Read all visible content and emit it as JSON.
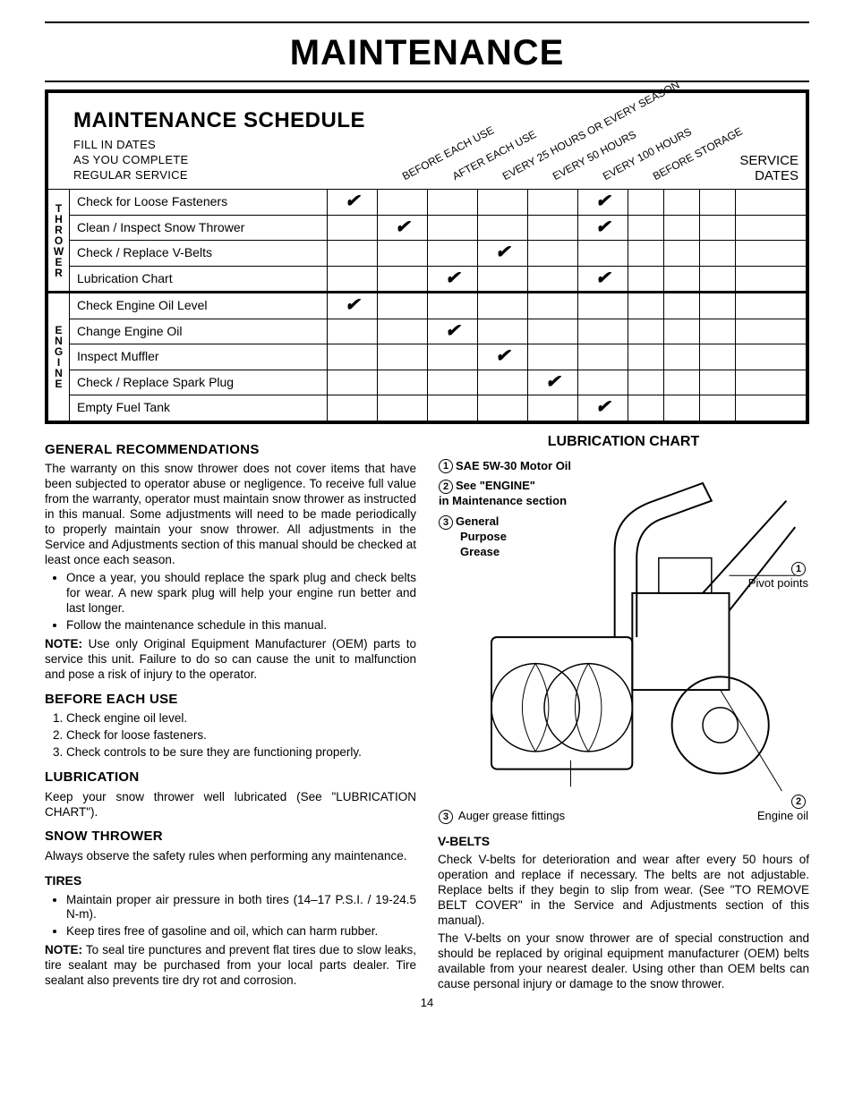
{
  "title": "MAINTENANCE",
  "schedule": {
    "heading": "MAINTENANCE SCHEDULE",
    "sub1": "FILL IN DATES",
    "sub2": "AS YOU COMPLETE",
    "sub3": "REGULAR SERVICE",
    "service_dates": "SERVICE\nDATES",
    "cols": [
      "BEFORE EACH USE",
      "AFTER EACH USE",
      "EVERY 25 HOURS OR EVERY SEASON",
      "EVERY 50 HOURS",
      "EVERY 100 HOURS",
      "BEFORE STORAGE"
    ],
    "checkmark": "✔",
    "group_thrower": "THROWER",
    "group_engine": "ENGINE",
    "rows": [
      {
        "group": "t",
        "task": "Check for Loose Fasteners",
        "checks": [
          true,
          false,
          false,
          false,
          false,
          true
        ]
      },
      {
        "group": "t",
        "task": "Clean / Inspect Snow Thrower",
        "checks": [
          false,
          true,
          false,
          false,
          false,
          true
        ]
      },
      {
        "group": "t",
        "task": "Check / Replace V-Belts",
        "checks": [
          false,
          false,
          false,
          true,
          false,
          false
        ]
      },
      {
        "group": "t",
        "task": "Lubrication Chart",
        "checks": [
          false,
          false,
          true,
          false,
          false,
          true
        ]
      },
      {
        "group": "e",
        "task": "Check Engine Oil Level",
        "checks": [
          true,
          false,
          false,
          false,
          false,
          false
        ]
      },
      {
        "group": "e",
        "task": "Change Engine Oil",
        "checks": [
          false,
          false,
          true,
          false,
          false,
          false
        ]
      },
      {
        "group": "e",
        "task": "Inspect Muffler",
        "checks": [
          false,
          false,
          false,
          true,
          false,
          false
        ]
      },
      {
        "group": "e",
        "task": "Check / Replace Spark Plug",
        "checks": [
          false,
          false,
          false,
          false,
          true,
          false
        ]
      },
      {
        "group": "e",
        "task": "Empty Fuel Tank",
        "checks": [
          false,
          false,
          false,
          false,
          false,
          true
        ]
      }
    ]
  },
  "left": {
    "h_general": "GENERAL RECOMMENDATIONS",
    "p_general": "The warranty on this snow thrower does not cover items that have been subjected to operator abuse or negligence. To receive full value from the warranty, operator must maintain snow thrower as instructed in this manual. Some adjustments will need to be made periodically to properly maintain your snow thrower. All adjustments in the Service and Adjustments section of this manual should be checked at least once each season.",
    "li1": "Once a year, you should replace the spark plug and check belts for wear. A new spark plug will help your engine run better and last longer.",
    "li2": "Follow the maintenance schedule in this manual.",
    "note_label": "NOTE:",
    "note1": " Use only Original Equipment Manufacturer (OEM) parts to service this unit. Failure to do so can cause the unit to malfunction and pose a risk of injury to the operator.",
    "h_before": "BEFORE EACH USE",
    "ol1": "Check engine oil level.",
    "ol2": "Check for loose fasteners.",
    "ol3": "Check controls to be sure they are functioning properly.",
    "h_lub": "LUBRICATION",
    "p_lub": "Keep your snow thrower well lubricated (See \"LUBRICATION CHART\").",
    "h_snow": "SNOW THROWER",
    "p_snow": "Always observe the safety rules when performing any maintenance.",
    "h_tires": "TIRES",
    "li_t1": "Maintain proper air pressure in both tires (14–17 P.S.I. / 19-24.5 N-m).",
    "li_t2": "Keep tires free of gasoline and oil, which can harm rubber.",
    "note2": " To seal tire punctures and prevent flat tires due to slow leaks, tire sealant may be purchased from your local parts dealer. Tire sealant also prevents tire dry rot and corrosion."
  },
  "right": {
    "h_chart": "LUBRICATION CHART",
    "l1": "SAE 5W-30 Motor Oil",
    "l2a": "See \"ENGINE\"",
    "l2b": "in Maintenance section",
    "l3a": "General",
    "l3b": "Purpose",
    "l3c": "Grease",
    "pivot": "Pivot points",
    "auger": "Auger grease fittings",
    "engine_oil": "Engine oil",
    "h_vbelts": "V-BELTS",
    "p_v1": "Check V-belts for deterioration and wear after every 50 hours of operation and replace if necessary. The belts are not adjustable. Replace belts if they begin to slip from wear. (See \"TO REMOVE BELT COVER\" in the Service and Adjustments section of this manual).",
    "p_v2": "The V-belts on your snow thrower are of special construction and should be replaced by original equipment manufacturer (OEM) belts available from your nearest dealer. Using other than OEM belts can cause personal injury or damage to the snow thrower."
  },
  "pagenum": "14"
}
